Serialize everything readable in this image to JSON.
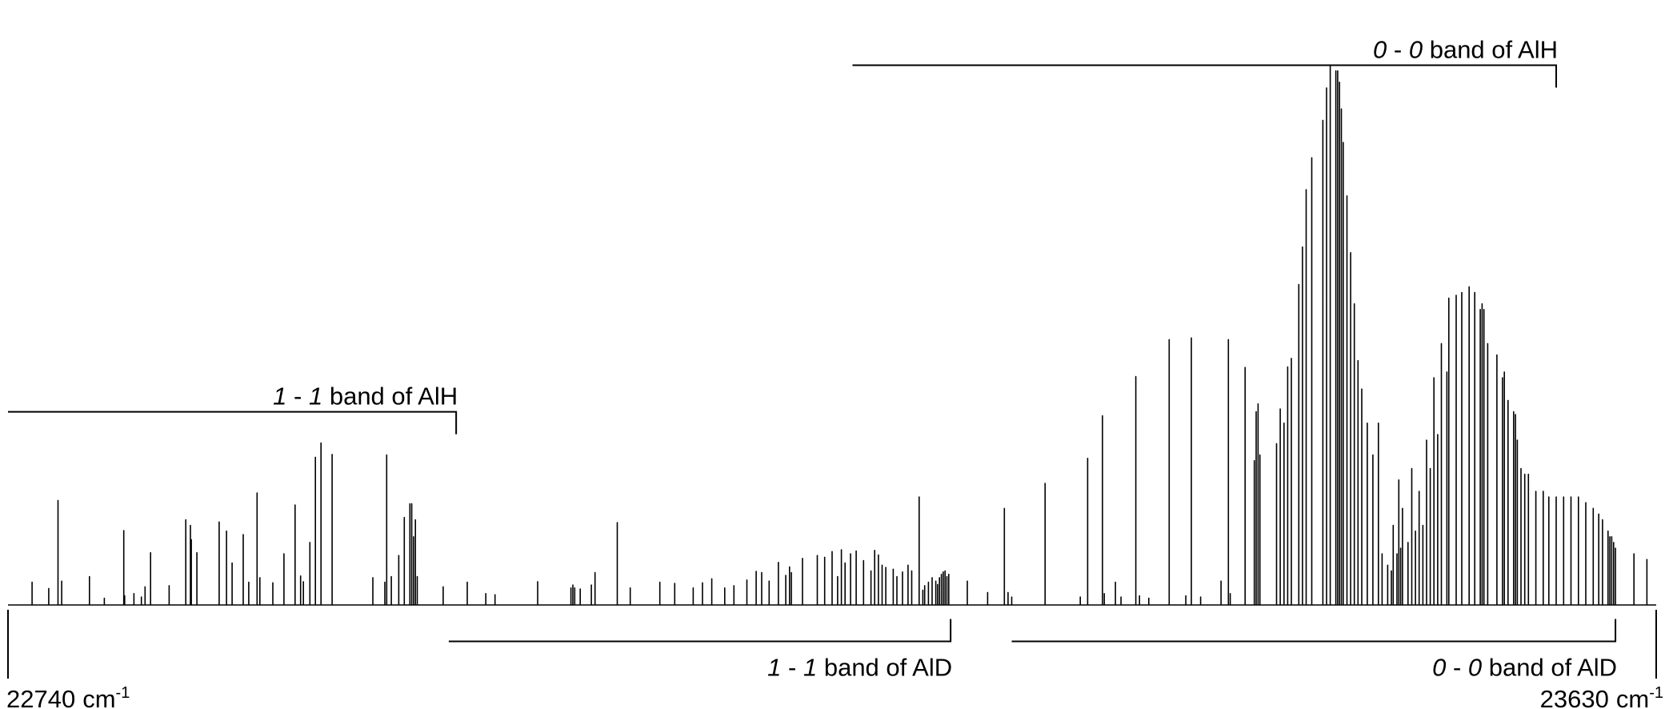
{
  "chart_data": {
    "type": "line",
    "title": "",
    "xlabel": "",
    "ylabel": "",
    "xlim": [
      22740,
      23630
    ],
    "x_unit": "cm",
    "x_unit_exp": "-1",
    "axis_labels": {
      "left": "22740",
      "right": "23630"
    },
    "baseline": 0,
    "y_max": 1.0,
    "bands": [
      {
        "id": "aih-00",
        "v1": "0",
        "v2": "0",
        "text": "band of AlH",
        "x_from": 23196,
        "x_to": 23576,
        "position": "above",
        "level": 0.95
      },
      {
        "id": "aih-11",
        "v1": "1",
        "v2": "1",
        "text": "band of AlH",
        "x_from": 22740,
        "x_to": 22982,
        "position": "above",
        "level": 0.34
      },
      {
        "id": "ald-11",
        "v1": "1",
        "v2": "1",
        "text": "band of AlD",
        "x_from": 22978,
        "x_to": 23249,
        "position": "below",
        "level": -0.064
      },
      {
        "id": "ald-00",
        "v1": "0",
        "v2": "0",
        "text": "band of AlD",
        "x_from": 23282,
        "x_to": 23608,
        "position": "below",
        "level": -0.064
      }
    ],
    "peaks_x": [
      22753.0,
      22762.0,
      22767.0,
      22769.0,
      22784.0,
      22792.0,
      22802.5,
      22803.0,
      22808.0,
      22812.0,
      22814.0,
      22817.0,
      22827.0,
      22836.0,
      22838.5,
      22839.0,
      22842.0,
      22854.0,
      22858.0,
      22861.0,
      22867.0,
      22870.0,
      22874.5,
      22876.0,
      22883.0,
      22889.0,
      22895.0,
      22898.0,
      22899.5,
      22903.0,
      22906.0,
      22909.0,
      22915.0,
      22937.0,
      22943.5,
      22944.5,
      22947.0,
      22951.0,
      22954.0,
      22957.0,
      22958.0,
      22959.0,
      22960.0,
      22961.0,
      22975.0,
      22988.0,
      22998.0,
      23003.0,
      23026.0,
      23044.0,
      23045.0,
      23046.0,
      23049.0,
      23055.0,
      23057.0,
      23069.0,
      23076.0,
      23092.0,
      23100.0,
      23110.0,
      23115.0,
      23120.0,
      23127.0,
      23132.0,
      23139.0,
      23144.0,
      23147.0,
      23151.0,
      23156.0,
      23160.0,
      23162.0,
      23163.0,
      23169.0,
      23177.0,
      23181.0,
      23185.0,
      23188.0,
      23190.0,
      23192.0,
      23195.0,
      23198.0,
      23202.0,
      23206.0,
      23208.0,
      23210.0,
      23212.0,
      23214.0,
      23218.0,
      23220.0,
      23223.0,
      23226.0,
      23228.0,
      23232.0,
      23234.0,
      23235.0,
      23237.0,
      23239.0,
      23241.0,
      23242.0,
      23243.0,
      23244.0,
      23245.0,
      23246.0,
      23247.0,
      23248.0,
      23258.0,
      23269.0,
      23278.0,
      23280.0,
      23282.0,
      23300.0,
      23319.0,
      23323.0,
      23331.0,
      23332.0,
      23338.0,
      23341.0,
      23349.0,
      23351.0,
      23356.0,
      23367.0,
      23376.0,
      23379.0,
      23384.0,
      23395.0,
      23399.0,
      23400.0,
      23408.0,
      23413.0,
      23414.0,
      23415.0,
      23416.0,
      23425.0,
      23427.0,
      23429.0,
      23431.0,
      23433.0,
      23437.0,
      23439.0,
      23441.0,
      23444.0,
      23450.0,
      23452.0,
      23454.0,
      23457.0,
      23458.0,
      23459.0,
      23460.0,
      23461.0,
      23463.0,
      23465.0,
      23467.0,
      23469.0,
      23471.0,
      23474.0,
      23477.0,
      23480.0,
      23482.0,
      23485.0,
      23487.0,
      23488.0,
      23490.0,
      23491.0,
      23492.0,
      23493.0,
      23496.0,
      23498.0,
      23500.0,
      23502.0,
      23504.0,
      23506.0,
      23508.0,
      23510.0,
      23512.0,
      23514.0,
      23517.0,
      23518.0,
      23522.0,
      23525.0,
      23529.0,
      23532.0,
      23535.0,
      23536.0,
      23537.0,
      23539.0,
      23544.0,
      23547.0,
      23548.0,
      23550.0,
      23553.0,
      23554.0,
      23555.0,
      23557.0,
      23559.0,
      23561.0,
      23565.0,
      23569.0,
      23572.0,
      23576.0,
      23580.0,
      23584.0,
      23588.0,
      23592.0,
      23596.0,
      23599.0,
      23601.0,
      23604.0,
      23605.0,
      23606.0,
      23607.0,
      23608.0,
      23618.0,
      23625.0
    ],
    "peaks_y": [
      0.04,
      0.029,
      0.184,
      0.042,
      0.05,
      0.012,
      0.131,
      0.016,
      0.02,
      0.014,
      0.032,
      0.092,
      0.034,
      0.15,
      0.14,
      0.115,
      0.092,
      0.146,
      0.13,
      0.074,
      0.124,
      0.04,
      0.197,
      0.048,
      0.039,
      0.09,
      0.176,
      0.051,
      0.041,
      0.11,
      0.26,
      0.285,
      0.265,
      0.048,
      0.04,
      0.264,
      0.05,
      0.087,
      0.154,
      0.178,
      0.178,
      0.12,
      0.15,
      0.05,
      0.032,
      0.04,
      0.02,
      0.018,
      0.041,
      0.03,
      0.035,
      0.03,
      0.028,
      0.035,
      0.057,
      0.145,
      0.03,
      0.04,
      0.038,
      0.03,
      0.039,
      0.046,
      0.03,
      0.034,
      0.044,
      0.059,
      0.057,
      0.042,
      0.075,
      0.052,
      0.067,
      0.057,
      0.082,
      0.087,
      0.084,
      0.094,
      0.05,
      0.097,
      0.074,
      0.09,
      0.095,
      0.078,
      0.06,
      0.096,
      0.088,
      0.07,
      0.066,
      0.063,
      0.05,
      0.058,
      0.07,
      0.06,
      0.19,
      0.026,
      0.034,
      0.04,
      0.048,
      0.042,
      0.036,
      0.048,
      0.054,
      0.058,
      0.06,
      0.05,
      0.054,
      0.042,
      0.022,
      0.17,
      0.022,
      0.014,
      0.214,
      0.014,
      0.258,
      0.333,
      0.02,
      0.04,
      0.014,
      0.402,
      0.016,
      0.012,
      0.467,
      0.016,
      0.47,
      0.014,
      0.042,
      0.467,
      0.02,
      0.418,
      0.254,
      0.34,
      0.354,
      0.264,
      0.284,
      0.345,
      0.32,
      0.419,
      0.434,
      0.564,
      0.63,
      0.731,
      0.787,
      0.853,
      0.91,
      0.95,
      0.94,
      0.94,
      0.92,
      0.873,
      0.814,
      0.72,
      0.62,
      0.53,
      0.43,
      0.38,
      0.32,
      0.264,
      0.32,
      0.09,
      0.07,
      0.06,
      0.14,
      0.09,
      0.22,
      0.1,
      0.17,
      0.11,
      0.24,
      0.13,
      0.2,
      0.14,
      0.29,
      0.24,
      0.4,
      0.3,
      0.46,
      0.41,
      0.54,
      0.545,
      0.55,
      0.56,
      0.55,
      0.52,
      0.53,
      0.52,
      0.46,
      0.44,
      0.4,
      0.41,
      0.36,
      0.34,
      0.335,
      0.29,
      0.24,
      0.23,
      0.23,
      0.2,
      0.2,
      0.19,
      0.19,
      0.19,
      0.19,
      0.19,
      0.18,
      0.17,
      0.16,
      0.15,
      0.13,
      0.12,
      0.12,
      0.11,
      0.1,
      0.09,
      0.08,
      0.07,
      0.06,
      0.06,
      0.03,
      0.04
    ]
  }
}
